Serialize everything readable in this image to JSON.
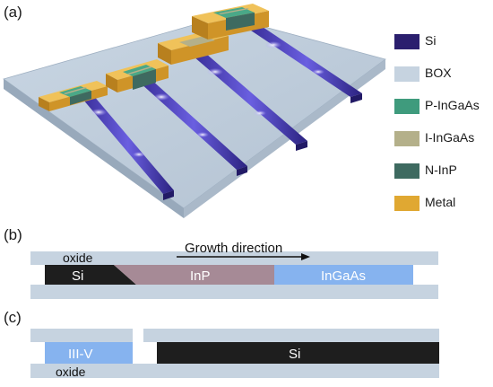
{
  "panels": {
    "a": "(a)",
    "b": "(b)",
    "c": "(c)"
  },
  "legend": [
    {
      "label": "Si",
      "color": "#2b1f6e"
    },
    {
      "label": "BOX",
      "color": "#c6d3e0"
    },
    {
      "label": "P-InGaAs",
      "color": "#3f9b7d"
    },
    {
      "label": "I-InGaAs",
      "color": "#b4b08a"
    },
    {
      "label": "N-InP",
      "color": "#3e6a60"
    },
    {
      "label": "Metal",
      "color": "#e0a832"
    }
  ],
  "panel_b": {
    "oxide_label": "oxide",
    "si_label": "Si",
    "inp_label": "InP",
    "ingaas_label": "InGaAs",
    "growth_label": "Growth direction"
  },
  "panel_c": {
    "iiiv_label": "III-V",
    "oxide_label": "oxide",
    "si_label": "Si"
  },
  "colors": {
    "box_layer": "#c6d3e0",
    "si_dark": "#1e1e1e",
    "inp": "#a68a96",
    "ingaas": "#86b3ef",
    "waveguide": "#4a3fb0"
  }
}
